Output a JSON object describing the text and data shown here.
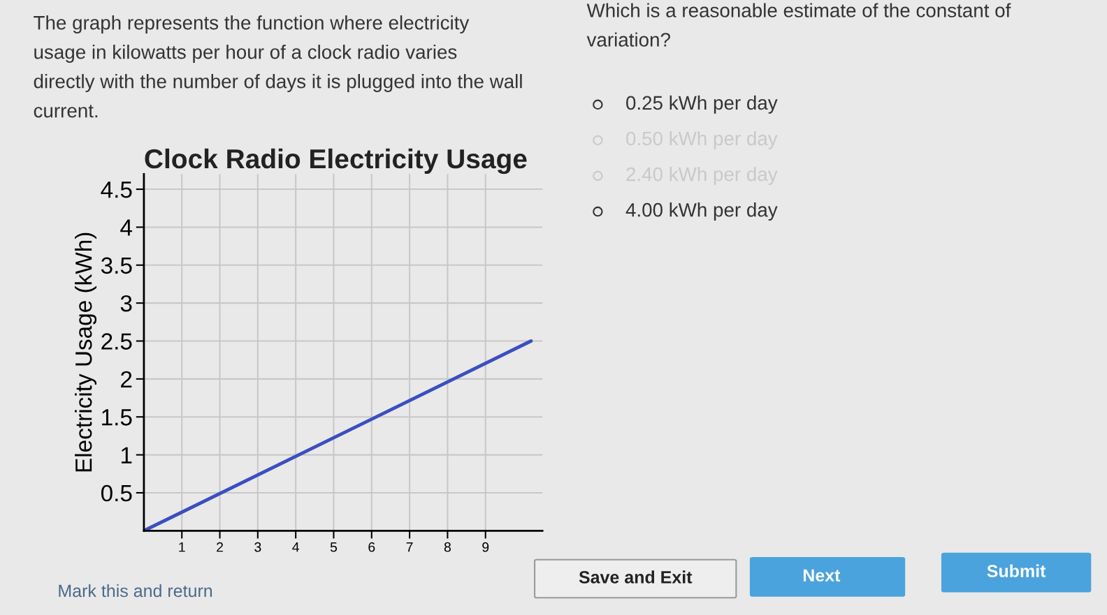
{
  "chart_data": {
    "type": "line",
    "title": "Clock Radio Electricity Usage",
    "ylabel": "Electricity Usage (kWh)",
    "x": [
      0,
      10.2
    ],
    "series": [
      {
        "color": "#3a4fc0",
        "values": [
          0,
          2.5
        ]
      }
    ],
    "xlim": [
      0,
      10.5
    ],
    "xticks": [
      1,
      2,
      3,
      4,
      5,
      6,
      7,
      8,
      9
    ],
    "ylim": [
      0,
      4.7
    ],
    "yticks": [
      0.5,
      1,
      1.5,
      2,
      2.5,
      3,
      3.5,
      4,
      4.5
    ],
    "grid": true,
    "marker": "none",
    "line_style": "solid",
    "annotations": [
      "The graph represents the function where electricity\nusage in kilowatts per hour of a clock radio varies\ndirectly with the number of days it is plugged into the wall\ncurrent.",
      "Which is a reasonable estimate of the constant of\nvariation?",
      "0.25 kWh per day",
      "0.50 kWh per day",
      "2.40 kWh per day",
      "4.00 kWh per day",
      "Mark this and return",
      "Save and Exit",
      "Next",
      "Submit"
    ]
  }
}
